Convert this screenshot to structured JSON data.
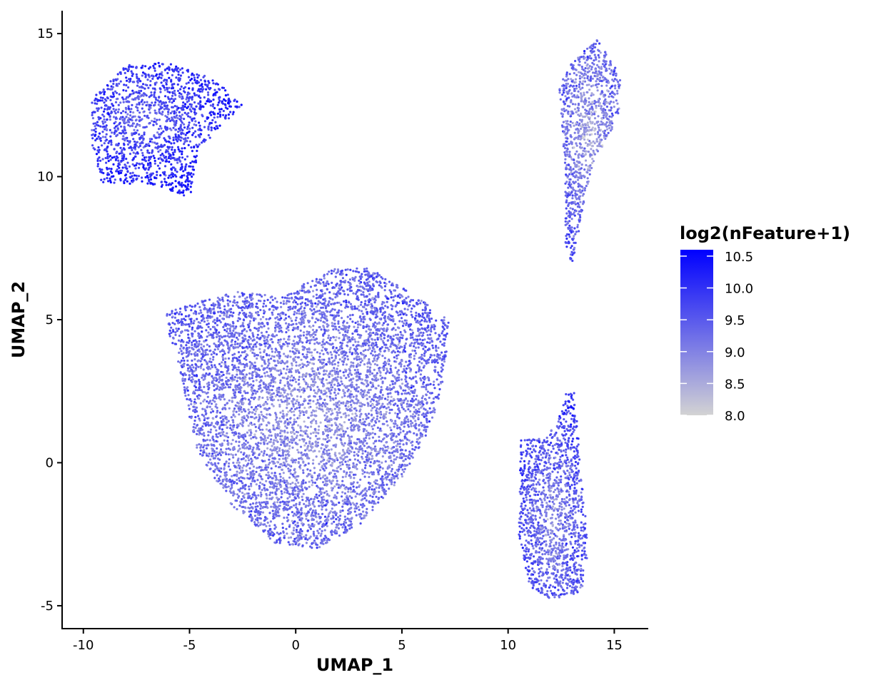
{
  "chart_data": {
    "type": "scatter",
    "title": "",
    "xlabel": "UMAP_1",
    "ylabel": "UMAP_2",
    "xlim": [
      -11.0,
      16.6
    ],
    "ylim": [
      -5.8,
      15.8
    ],
    "x_ticks": [
      -10,
      -5,
      0,
      5,
      10,
      15
    ],
    "y_ticks": [
      -5,
      0,
      5,
      10,
      15
    ],
    "x_tick_labels": [
      "-10",
      "-5",
      "0",
      "5",
      "10",
      "15"
    ],
    "y_tick_labels": [
      "-5",
      "0",
      "5",
      "10",
      "15"
    ],
    "grid": false,
    "color_scale": {
      "title": "log2(nFeature+1)",
      "min": 8.0,
      "max": 10.6,
      "low_color": "#d3d3d3",
      "high_color": "#0000ff",
      "breaks": [
        8.0,
        8.5,
        9.0,
        9.5,
        10.0,
        10.5
      ],
      "break_labels": [
        "8.0",
        "8.5",
        "9.0",
        "9.5",
        "10.0",
        "10.5"
      ],
      "placement": "right"
    },
    "clusters": [
      {
        "center": [
          -7.2,
          12.2
        ],
        "spread": [
          2.2,
          1.3
        ],
        "n_points": 1500,
        "mean_value": 9.9,
        "region": [
          [
            -9.6,
            12.7
          ],
          [
            -8.0,
            13.9
          ],
          [
            -6.0,
            14.0
          ],
          [
            -3.8,
            13.4
          ],
          [
            -2.5,
            12.5
          ],
          [
            -4.5,
            11.0
          ],
          [
            -5.0,
            9.2
          ],
          [
            -6.5,
            9.7
          ],
          [
            -9.2,
            9.8
          ],
          [
            -9.6,
            11.0
          ]
        ]
      },
      {
        "center": [
          13.9,
          11.5
        ],
        "spread": [
          0.8,
          1.8
        ],
        "n_points": 1000,
        "mean_value": 9.1,
        "region": [
          [
            13.0,
            14.0
          ],
          [
            14.2,
            14.8
          ],
          [
            15.3,
            13.5
          ],
          [
            15.2,
            12.0
          ],
          [
            14.0,
            10.5
          ],
          [
            13.4,
            8.5
          ],
          [
            13.1,
            6.8
          ],
          [
            12.7,
            7.5
          ],
          [
            12.7,
            10.0
          ],
          [
            12.4,
            13.2
          ]
        ]
      },
      {
        "center": [
          0.8,
          1.5
        ],
        "spread": [
          4.8,
          3.5
        ],
        "n_points": 6500,
        "mean_value": 9.3,
        "region": [
          [
            -6.3,
            5.2
          ],
          [
            -3.0,
            6.0
          ],
          [
            -0.5,
            5.8
          ],
          [
            1.5,
            6.8
          ],
          [
            3.5,
            6.8
          ],
          [
            5.5,
            5.9
          ],
          [
            7.2,
            5.0
          ],
          [
            7.0,
            2.8
          ],
          [
            6.2,
            1.0
          ],
          [
            5.0,
            -0.5
          ],
          [
            3.0,
            -2.2
          ],
          [
            1.0,
            -3.0
          ],
          [
            -1.0,
            -2.8
          ],
          [
            -3.0,
            -1.5
          ],
          [
            -4.7,
            0.5
          ],
          [
            -5.1,
            2.0
          ],
          [
            -5.6,
            3.7
          ]
        ]
      },
      {
        "center": [
          12.2,
          -2.0
        ],
        "spread": [
          0.9,
          1.9
        ],
        "n_points": 1400,
        "mean_value": 9.4,
        "region": [
          [
            10.6,
            0.8
          ],
          [
            11.6,
            0.9
          ],
          [
            12.3,
            1.3
          ],
          [
            12.7,
            2.4
          ],
          [
            13.1,
            2.5
          ],
          [
            13.3,
            1.0
          ],
          [
            13.6,
            -1.5
          ],
          [
            13.8,
            -3.0
          ],
          [
            13.5,
            -4.5
          ],
          [
            12.0,
            -4.8
          ],
          [
            11.0,
            -4.3
          ],
          [
            10.5,
            -2.5
          ]
        ]
      }
    ]
  }
}
